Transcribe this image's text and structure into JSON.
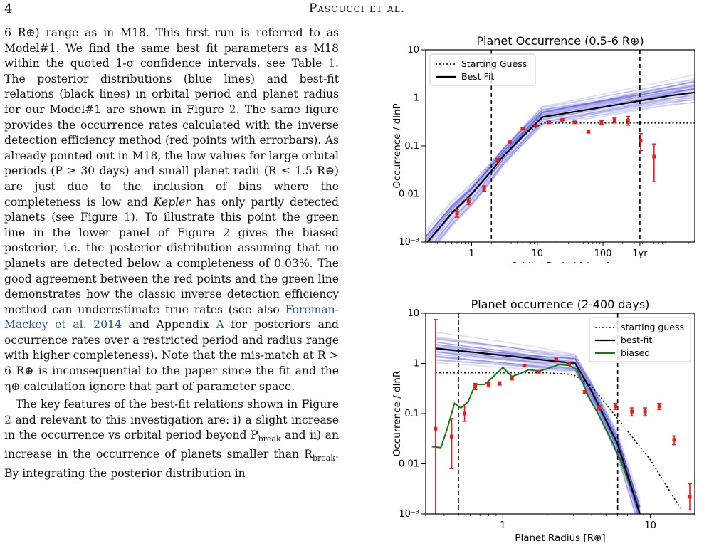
{
  "header": {
    "page_number": "4",
    "running_title": "Pascucci et al."
  },
  "body_text": {
    "p1": [
      "6 R⊕) range as in M18. This first run is referred to as Model#1. We find the same best fit parameters as M18 within the quoted 1-σ confidence intervals, see Table ",
      "1",
      ". The posterior distributions (blue lines) and best-fit relations (black lines) in orbital period and planet radius for our Model#1 are shown in Figure ",
      "2",
      ". The same figure provides the occurrence rates calculated with the inverse detection efficiency method (red points with errorbars). As already pointed out in M18, the low values for large orbital periods (P ≥ 30 days) and small planet radii (R ≤ 1.5 R⊕) are just due to the inclusion of bins where the completeness is low and ",
      "Kepler",
      " has only partly detected planets (see Figure ",
      "1",
      "). To illustrate this point the green line in the lower panel of Figure ",
      "2",
      " gives the biased posterior, i.e. the posterior distribution assuming that no planets are detected below a completeness of 0.03%. The good agreement between the red points and the green line demonstrates how the classic inverse detection efficiency method can underestimate true rates (see also ",
      "Foreman-Mackey et al. 2014",
      " and Appendix ",
      "A",
      " for posteriors and occurrence rates over a restricted period and radius range with higher completeness). Note that the mis-match at R > 6 R⊕ is inconsequential to the paper since the fit and the η⊕ calculation ignore that part of parameter space."
    ],
    "p2": [
      "The key features of the best-fit relations shown in Figure ",
      "2",
      " and relevant to this investigation are: i) a slight increase in the occurrence vs orbital period beyond P",
      "break",
      " and ii) an increase in the occurrence of planets smaller than R",
      "break",
      ". By integrating the posterior distribution in"
    ]
  },
  "chart_data": [
    {
      "type": "line",
      "title": "Planet Occurrence (0.5-6 R⊕)",
      "xlabel": "Orbital Period [days]",
      "ylabel": "Occurrence / dlnP",
      "xscale": "log",
      "yscale": "log",
      "xlim": [
        0.2,
        2500
      ],
      "ylim": [
        0.001,
        10
      ],
      "xticks": [
        {
          "v": 1,
          "label": "1"
        },
        {
          "v": 10,
          "label": "10"
        },
        {
          "v": 100,
          "label": "100"
        },
        {
          "v": 365,
          "label": "1yr"
        }
      ],
      "yticks": [
        {
          "v": 0.001,
          "label": "10⁻³"
        },
        {
          "v": 0.01,
          "label": "0.01"
        },
        {
          "v": 0.1,
          "label": "0.1"
        },
        {
          "v": 1,
          "label": "1"
        },
        {
          "v": 10,
          "label": "10"
        }
      ],
      "vlines": [
        2,
        365
      ],
      "legend": {
        "position": "top-left",
        "entries": [
          "Starting Guess",
          "Best Fit"
        ]
      },
      "starting_guess": {
        "x": [
          0.2,
          0.5,
          1,
          2,
          3,
          6,
          12,
          100,
          1000,
          2500
        ],
        "y": [
          0.0009,
          0.004,
          0.01,
          0.03,
          0.06,
          0.16,
          0.3,
          0.3,
          0.3,
          0.3
        ]
      },
      "best_fit": {
        "x": [
          0.2,
          0.5,
          1,
          2,
          3,
          6,
          12,
          100,
          1000,
          2500
        ],
        "y": [
          0.0009,
          0.004,
          0.01,
          0.03,
          0.06,
          0.16,
          0.4,
          0.64,
          1.1,
          1.3
        ]
      },
      "posterior_count": 40,
      "points": [
        {
          "x": 0.6,
          "y": 0.004,
          "lo": 0.0033,
          "hi": 0.0048
        },
        {
          "x": 0.9,
          "y": 0.007,
          "lo": 0.006,
          "hi": 0.0082
        },
        {
          "x": 1.55,
          "y": 0.013,
          "lo": 0.0115,
          "hi": 0.0148
        },
        {
          "x": 2.5,
          "y": 0.05,
          "lo": 0.046,
          "hi": 0.055
        },
        {
          "x": 3.8,
          "y": 0.12,
          "lo": 0.115,
          "hi": 0.126
        },
        {
          "x": 6,
          "y": 0.23,
          "lo": 0.222,
          "hi": 0.238
        },
        {
          "x": 9.5,
          "y": 0.26,
          "lo": 0.25,
          "hi": 0.27
        },
        {
          "x": 15,
          "y": 0.31,
          "lo": 0.297,
          "hi": 0.323
        },
        {
          "x": 24,
          "y": 0.35,
          "lo": 0.335,
          "hi": 0.365
        },
        {
          "x": 37,
          "y": 0.31,
          "lo": 0.295,
          "hi": 0.325
        },
        {
          "x": 60,
          "y": 0.2,
          "lo": 0.185,
          "hi": 0.215
        },
        {
          "x": 95,
          "y": 0.31,
          "lo": 0.28,
          "hi": 0.34
        },
        {
          "x": 150,
          "y": 0.34,
          "lo": 0.3,
          "hi": 0.38
        },
        {
          "x": 240,
          "y": 0.34,
          "lo": 0.27,
          "hi": 0.41
        },
        {
          "x": 375,
          "y": 0.13,
          "lo": 0.08,
          "hi": 0.18
        },
        {
          "x": 600,
          "y": 0.06,
          "lo": 0.018,
          "hi": 0.11
        }
      ]
    },
    {
      "type": "line",
      "title": "Planet occurrence (2-400 days)",
      "xlabel": "Planet Radius [R⊕]",
      "ylabel": "Occurrence / dlnR",
      "xscale": "log",
      "yscale": "log",
      "xlim": [
        0.3,
        20
      ],
      "ylim": [
        0.001,
        10
      ],
      "xticks": [
        {
          "v": 1,
          "label": "1"
        },
        {
          "v": 10,
          "label": "10"
        }
      ],
      "yticks": [
        {
          "v": 0.001,
          "label": "10⁻³"
        },
        {
          "v": 0.01,
          "label": "0.01"
        },
        {
          "v": 0.1,
          "label": "0.1"
        },
        {
          "v": 1,
          "label": "1"
        },
        {
          "v": 10,
          "label": "10"
        }
      ],
      "vlines": [
        0.5,
        6
      ],
      "legend": {
        "position": "top-right",
        "entries": [
          "starting guess",
          "best-fit",
          "biased"
        ]
      },
      "starting_guess": {
        "x": [
          0.35,
          1,
          2,
          3,
          4,
          6,
          10,
          16
        ],
        "y": [
          0.65,
          0.65,
          0.65,
          0.6,
          0.35,
          0.08,
          0.012,
          0.0013
        ]
      },
      "best_fit": {
        "x": [
          0.35,
          1,
          2,
          3.1,
          4,
          6,
          8.5
        ],
        "y": [
          2,
          1.45,
          1.15,
          1.0,
          0.28,
          0.025,
          0.001
        ]
      },
      "biased": {
        "x": [
          0.33,
          0.38,
          0.42,
          0.47,
          0.52,
          0.58,
          0.65,
          0.75,
          0.85,
          1.0,
          1.15,
          1.3,
          1.5,
          1.75,
          2.0,
          2.4,
          2.8,
          3.2,
          3.8,
          4.5,
          5.5,
          6.5,
          7.5,
          8.5
        ],
        "y": [
          0.022,
          0.021,
          0.05,
          0.16,
          0.13,
          0.17,
          0.38,
          0.38,
          0.52,
          0.83,
          0.55,
          0.62,
          0.75,
          0.7,
          0.78,
          0.95,
          0.92,
          0.75,
          0.22,
          0.09,
          0.028,
          0.009,
          0.003,
          0.001
        ]
      },
      "posterior_count": 40,
      "points": [
        {
          "x": 0.35,
          "y": 0.05,
          "lo": 0.0007,
          "hi": 7.5
        },
        {
          "x": 0.45,
          "y": 0.035,
          "lo": 0.008,
          "hi": 0.08
        },
        {
          "x": 0.55,
          "y": 0.1,
          "lo": 0.07,
          "hi": 0.14
        },
        {
          "x": 0.65,
          "y": 0.35,
          "lo": 0.3,
          "hi": 0.4
        },
        {
          "x": 0.8,
          "y": 0.38,
          "lo": 0.34,
          "hi": 0.42
        },
        {
          "x": 0.95,
          "y": 0.4,
          "lo": 0.37,
          "hi": 0.43
        },
        {
          "x": 1.15,
          "y": 0.5,
          "lo": 0.47,
          "hi": 0.53
        },
        {
          "x": 1.4,
          "y": 0.9,
          "lo": 0.86,
          "hi": 0.94
        },
        {
          "x": 1.75,
          "y": 0.68,
          "lo": 0.65,
          "hi": 0.71
        },
        {
          "x": 2.3,
          "y": 1.2,
          "lo": 1.15,
          "hi": 1.26
        },
        {
          "x": 2.8,
          "y": 1.0,
          "lo": 0.95,
          "hi": 1.05
        },
        {
          "x": 3.6,
          "y": 0.27,
          "lo": 0.255,
          "hi": 0.285
        },
        {
          "x": 4.5,
          "y": 0.13,
          "lo": 0.118,
          "hi": 0.142
        },
        {
          "x": 5.8,
          "y": 0.14,
          "lo": 0.12,
          "hi": 0.16
        },
        {
          "x": 7.5,
          "y": 0.11,
          "lo": 0.09,
          "hi": 0.13
        },
        {
          "x": 9.2,
          "y": 0.11,
          "lo": 0.09,
          "hi": 0.13
        },
        {
          "x": 11.5,
          "y": 0.14,
          "lo": 0.12,
          "hi": 0.16
        },
        {
          "x": 14.5,
          "y": 0.03,
          "lo": 0.024,
          "hi": 0.036
        },
        {
          "x": 18.5,
          "y": 0.0022,
          "lo": 0.0012,
          "hi": 0.004
        }
      ]
    }
  ],
  "colors": {
    "posterior": "#2b2bd6",
    "best_fit": "#000000",
    "points": "#e81c1c",
    "biased": "#0f7d0f"
  }
}
